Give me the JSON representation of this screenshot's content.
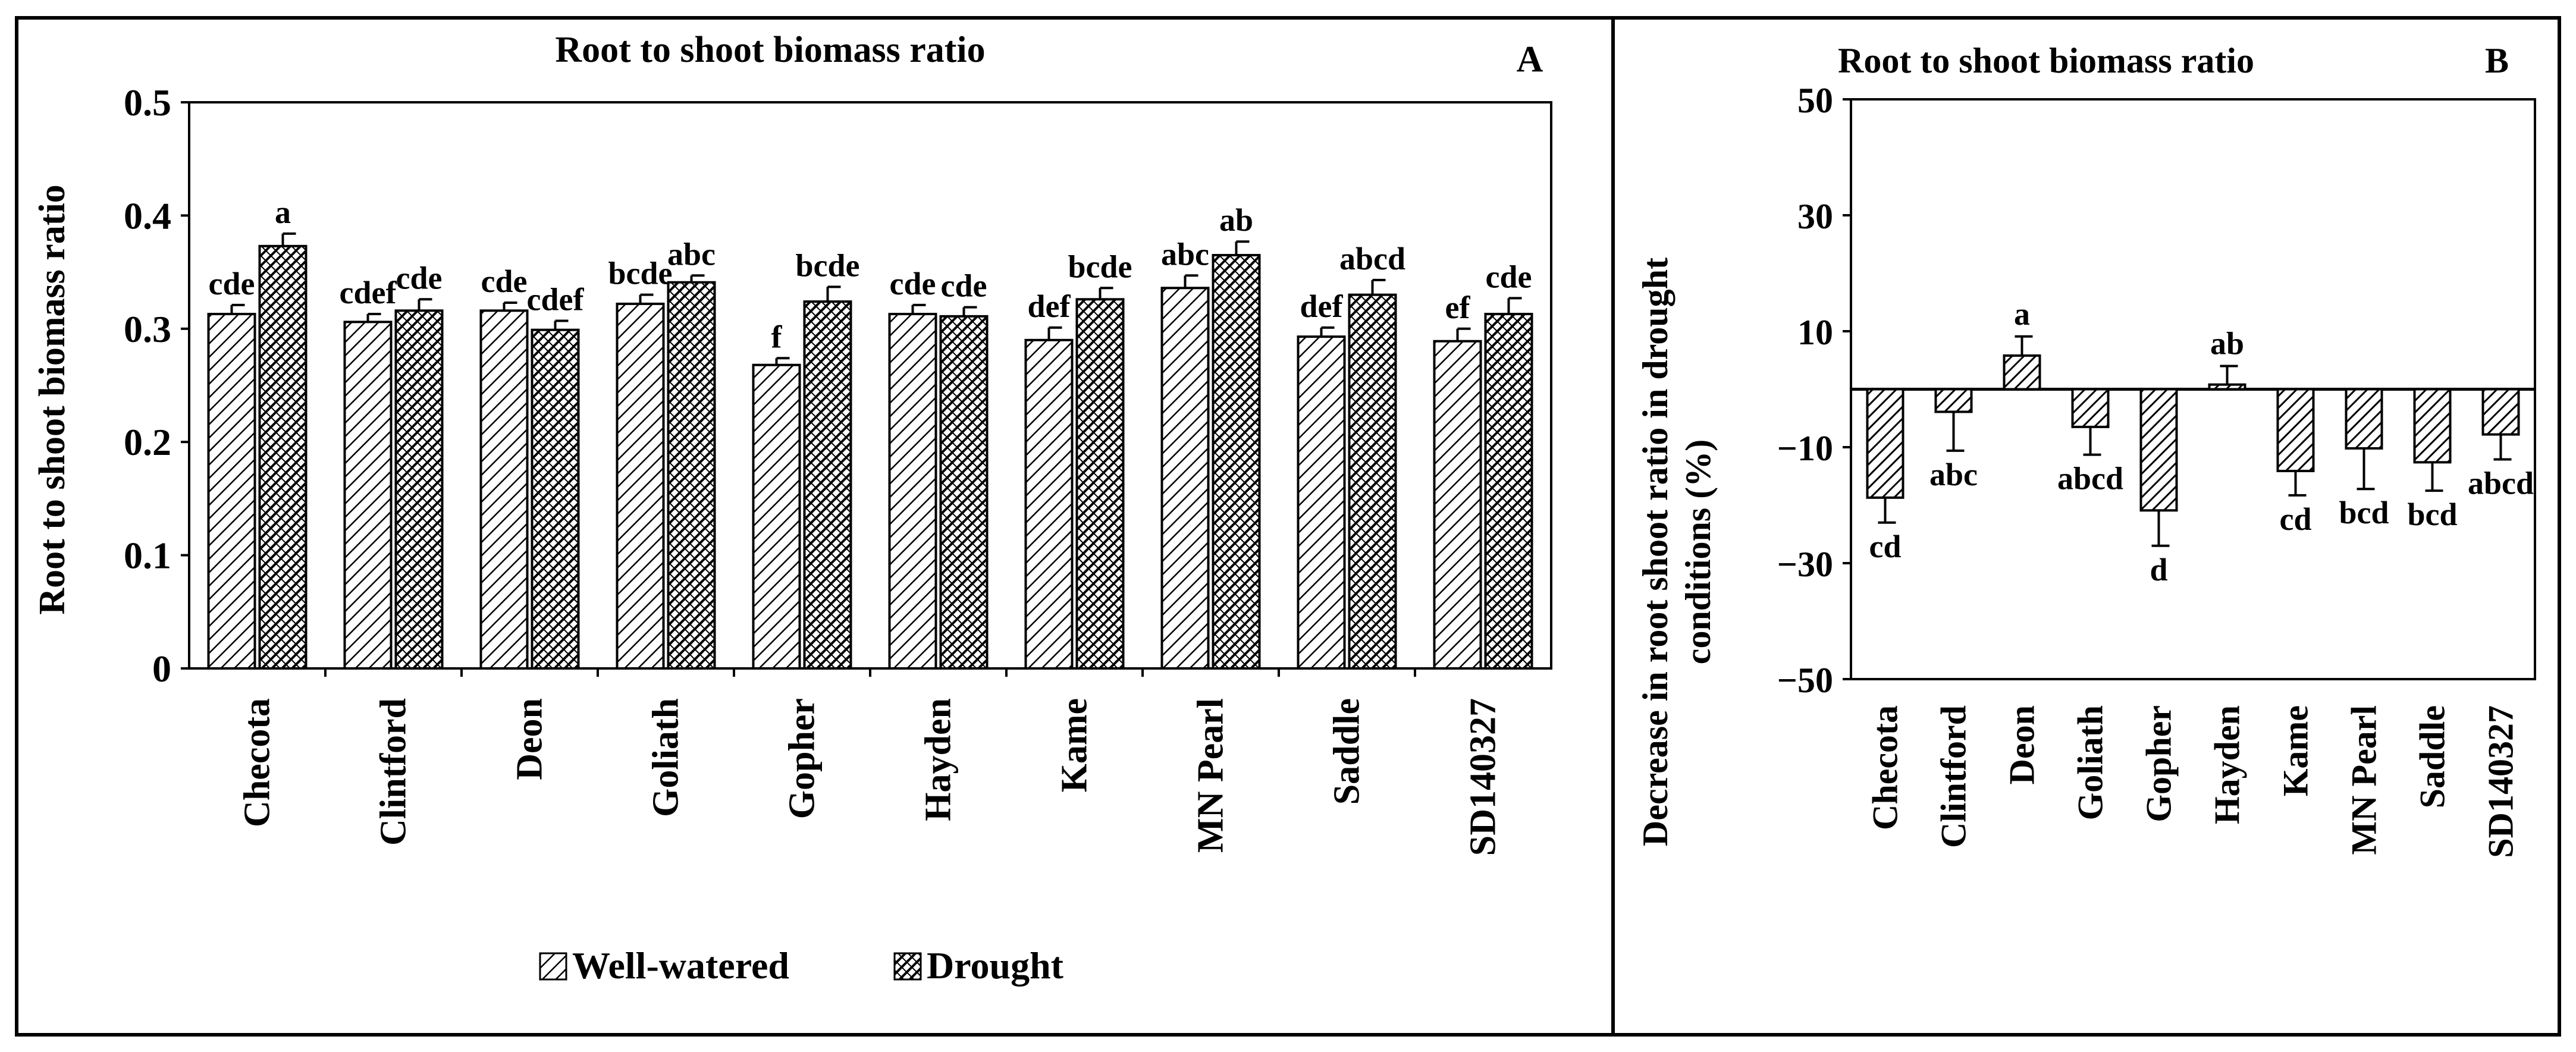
{
  "colors": {
    "ink": "#000000",
    "background": "#ffffff",
    "hatch_light": "#ffffff",
    "hatch_dark": "#3a3a3a"
  },
  "chart_data": [
    {
      "id": "A",
      "type": "bar",
      "title": "Root to shoot biomass ratio",
      "panel_label": "A",
      "xlabel": "",
      "ylabel": "Root to shoot biomass ratio",
      "ylim": [
        0,
        0.5
      ],
      "yticks": [
        0,
        0.1,
        0.2,
        0.3,
        0.4,
        0.5
      ],
      "ytick_labels": [
        "0",
        "0.1",
        "0.2",
        "0.3",
        "0.4",
        "0.5"
      ],
      "categories": [
        "Checota",
        "Clintford",
        "Deon",
        "Goliath",
        "Gopher",
        "Hayden",
        "Kame",
        "MN Pearl",
        "Saddle",
        "SD140327"
      ],
      "series": [
        {
          "name": "Well-watered",
          "pattern": "light",
          "values": [
            0.313,
            0.306,
            0.316,
            0.322,
            0.268,
            0.313,
            0.29,
            0.336,
            0.293,
            0.289
          ],
          "errors": [
            0.008,
            0.007,
            0.007,
            0.008,
            0.006,
            0.008,
            0.011,
            0.011,
            0.008,
            0.011
          ],
          "letters": [
            "cde",
            "cdef",
            "cde",
            "bcde",
            "f",
            "cde",
            "def",
            "abc",
            "def",
            "ef"
          ]
        },
        {
          "name": "Drought",
          "pattern": "dark",
          "values": [
            0.373,
            0.316,
            0.299,
            0.341,
            0.324,
            0.311,
            0.326,
            0.365,
            0.33,
            0.313
          ],
          "errors": [
            0.011,
            0.01,
            0.008,
            0.006,
            0.013,
            0.008,
            0.01,
            0.012,
            0.013,
            0.014
          ],
          "letters": [
            "a",
            "cde",
            "cdef",
            "abc",
            "bcde",
            "cde",
            "bcde",
            "ab",
            "abcd",
            "cde"
          ]
        }
      ],
      "legend": {
        "position": "bottom",
        "entries": [
          "Well-watered",
          "Drought"
        ]
      }
    },
    {
      "id": "B",
      "type": "bar",
      "title": "Root to shoot biomass ratio",
      "panel_label": "B",
      "xlabel": "",
      "ylabel_lines": [
        "Decrease in root shoot ratio in drought",
        "conditions (%)"
      ],
      "ylim": [
        -50,
        50
      ],
      "yticks": [
        -50,
        -30,
        -10,
        10,
        30,
        50
      ],
      "ytick_labels": [
        "−50",
        "−30",
        "−10",
        "10",
        "30",
        "50"
      ],
      "categories": [
        "Checota",
        "Clintford",
        "Deon",
        "Goliath",
        "Gopher",
        "Hayden",
        "Kame",
        "MN Pearl",
        "Saddle",
        "SD140327"
      ],
      "series": [
        {
          "name": "Decrease in root shoot ratio",
          "pattern": "medium",
          "values": [
            -18.7,
            -3.9,
            5.8,
            -6.5,
            -20.9,
            0.8,
            -14.1,
            -10.2,
            -12.6,
            -7.8
          ],
          "errors": [
            4.3,
            6.7,
            3.3,
            4.8,
            6.1,
            3.2,
            4.2,
            7.0,
            4.9,
            4.3
          ],
          "letters": [
            "cd",
            "abc",
            "a",
            "abcd",
            "d",
            "ab",
            "cd",
            "bcd",
            "bcd",
            "abcd"
          ]
        }
      ]
    }
  ]
}
